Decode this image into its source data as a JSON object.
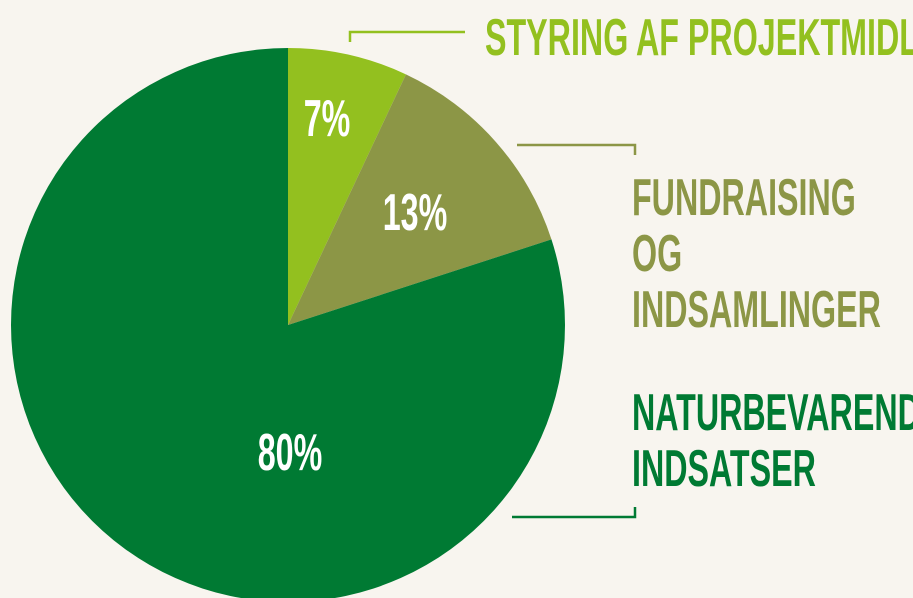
{
  "chart_data": {
    "type": "pie",
    "categories": [
      "STYRING AF PROJEKTMIDLER",
      "FUNDRAISING OG INDSAMLINGER",
      "NATURBEVARENDE INDSATSER"
    ],
    "values": [
      7,
      13,
      80
    ],
    "value_labels": [
      "7%",
      "13%",
      "80%"
    ],
    "colors": [
      "#93c01f",
      "#8c9646",
      "#007a33"
    ]
  }
}
